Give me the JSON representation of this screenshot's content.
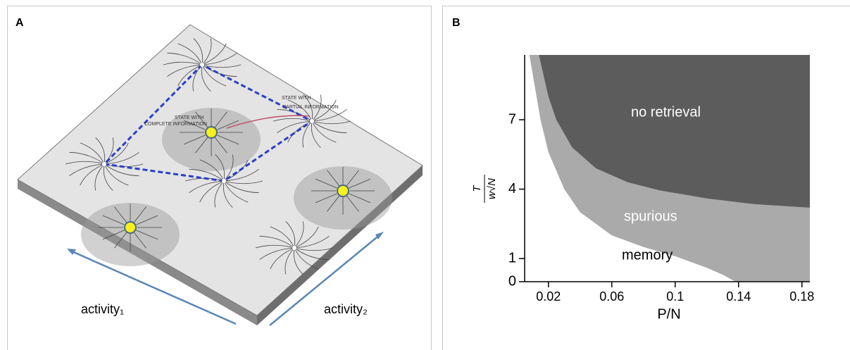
{
  "panel_a": {
    "label": "A",
    "complete_state_label": [
      "STATE WITH",
      "COMPLETE INFORMATION"
    ],
    "partial_state_label": [
      "STATE WITH",
      "PARTIAL INFORMATION"
    ],
    "axis_1_label": "activity₁",
    "axis_2_label": "activity₂"
  },
  "chart_data": {
    "type": "area",
    "panel_label": "B",
    "x_label": "P/N",
    "y_label": {
      "numerator": "T",
      "denominator": "w√N"
    },
    "xlim": [
      0.005,
      0.185
    ],
    "ylim": [
      0,
      9.8
    ],
    "xticks": [
      0.02,
      0.06,
      0.1,
      0.14,
      0.18
    ],
    "yticks": [
      0,
      1,
      4,
      7
    ],
    "boundaries": [
      {
        "color": "#aaaaaa",
        "x": [
          0.008,
          0.015,
          0.02,
          0.03,
          0.04,
          0.06,
          0.08,
          0.1,
          0.12,
          0.13,
          0.138
        ],
        "y": [
          9.8,
          7,
          5.6,
          4.0,
          3.0,
          2.0,
          1.5,
          1.1,
          0.6,
          0.3,
          0
        ]
      },
      {
        "color": "#5c5c5c",
        "x": [
          0.014,
          0.02,
          0.025,
          0.035,
          0.05,
          0.07,
          0.09,
          0.12,
          0.15,
          0.185
        ],
        "y": [
          9.8,
          8,
          7,
          5.8,
          4.9,
          4.3,
          3.95,
          3.6,
          3.35,
          3.2
        ]
      }
    ],
    "region_labels": [
      "memory",
      "spurious",
      "no retrieval"
    ]
  }
}
